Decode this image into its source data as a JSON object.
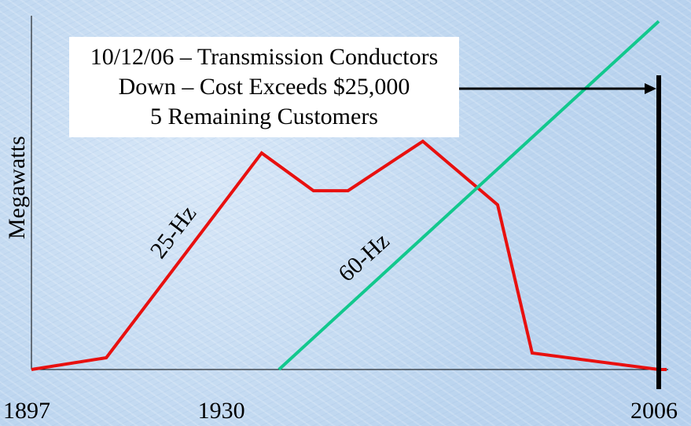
{
  "chart_data": {
    "type": "line",
    "title": "",
    "xlabel": "",
    "ylabel": "Megawatts",
    "x_ticks": [
      "1897",
      "1930",
      "2006"
    ],
    "xlim": [
      1897,
      2006
    ],
    "ylim": [
      0,
      100
    ],
    "series": [
      {
        "name": "25-Hz",
        "color": "#e8100f",
        "points": [
          {
            "x": 1897,
            "y": 0
          },
          {
            "x": 1910,
            "y": 5
          },
          {
            "x": 1937,
            "y": 92
          },
          {
            "x": 1946,
            "y": 76
          },
          {
            "x": 1952,
            "y": 76
          },
          {
            "x": 1965,
            "y": 97
          },
          {
            "x": 1978,
            "y": 70
          },
          {
            "x": 1984,
            "y": 7
          },
          {
            "x": 2006,
            "y": 0
          }
        ]
      },
      {
        "name": "60-Hz",
        "color": "#12c88d",
        "points": [
          {
            "x": 1940,
            "y": 0
          },
          {
            "x": 2006,
            "y": 148
          }
        ]
      }
    ],
    "event": {
      "x": 2006,
      "color": "#000000"
    }
  },
  "callout": {
    "lines": [
      "10/12/06 – Transmission Conductors",
      "Down – Cost Exceeds $25,000",
      "5 Remaining Customers"
    ]
  }
}
